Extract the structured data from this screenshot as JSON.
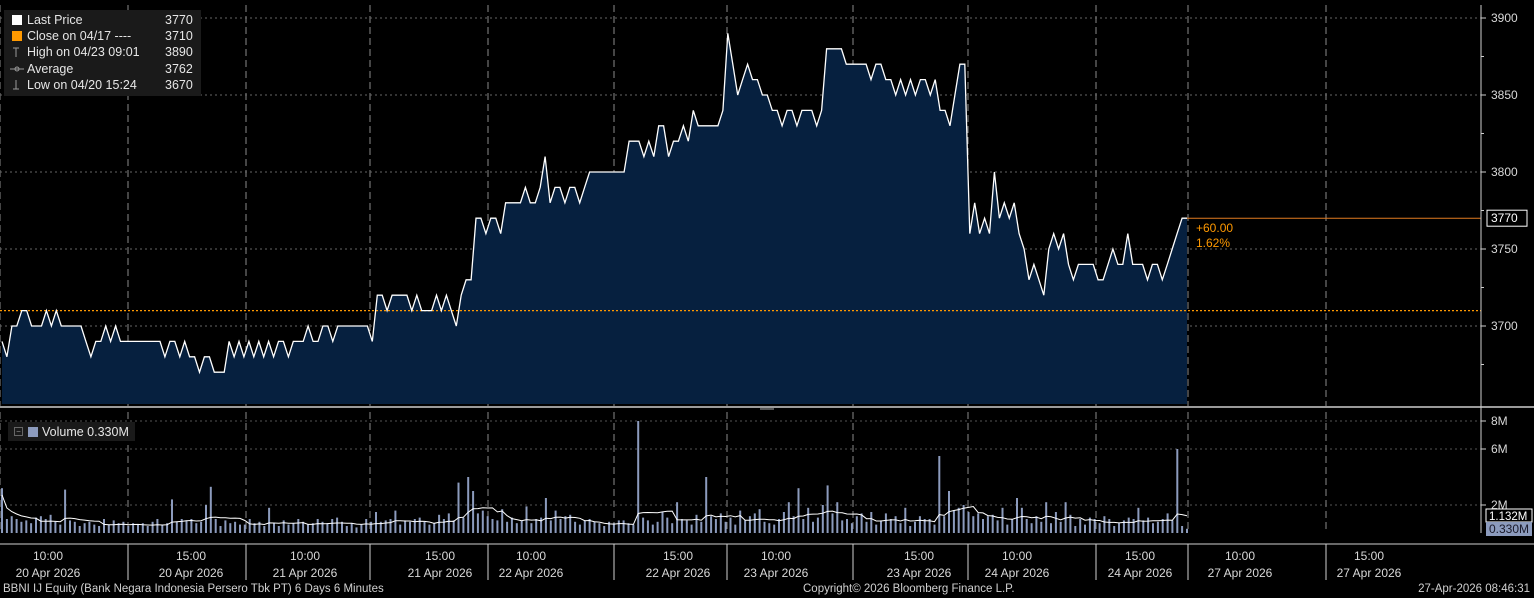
{
  "legend": {
    "last_price": {
      "label": "Last Price",
      "value": "3770",
      "color": "#ffffff"
    },
    "close": {
      "label": "Close on 04/17 ----",
      "value": "3710",
      "color": "#ff9900"
    },
    "high": {
      "label": "High on 04/23 09:01",
      "value": "3890"
    },
    "average": {
      "label": "Average",
      "value": "3762"
    },
    "low": {
      "label": "Low on 04/20 15:24",
      "value": "3670"
    }
  },
  "volume_legend": {
    "label": "Volume 0.330M",
    "color": "#8c9bbd"
  },
  "price_axis": {
    "ticks": [
      "3900",
      "3850",
      "3800",
      "3750",
      "3700"
    ],
    "last_label": "3770"
  },
  "volume_axis": {
    "ticks": [
      "8M",
      "6M",
      "2M"
    ],
    "avg_label": "1.132M",
    "last_label": "0.330M"
  },
  "change": {
    "abs": "+60.00",
    "pct": "1.62%"
  },
  "x_axis": [
    {
      "time": "10:00",
      "date": "20 Apr 2026"
    },
    {
      "time": "15:00",
      "date": "20 Apr 2026"
    },
    {
      "time": "10:00",
      "date": "21 Apr 2026"
    },
    {
      "time": "15:00",
      "date": "21 Apr 2026"
    },
    {
      "time": "10:00",
      "date": "22 Apr 2026"
    },
    {
      "time": "15:00",
      "date": "22 Apr 2026"
    },
    {
      "time": "10:00",
      "date": "23 Apr 2026"
    },
    {
      "time": "15:00",
      "date": "23 Apr 2026"
    },
    {
      "time": "10:00",
      "date": "24 Apr 2026"
    },
    {
      "time": "15:00",
      "date": "24 Apr 2026"
    },
    {
      "time": "10:00",
      "date": "27 Apr 2026"
    },
    {
      "time": "15:00",
      "date": "27 Apr 2026"
    }
  ],
  "footer": {
    "left": "BBNI IJ Equity (Bank Negara Indonesia Persero Tbk PT) 6 Days 6 Minutes",
    "center": "Copyright© 2026 Bloomberg Finance L.P.",
    "right": "27-Apr-2026 08:46:31"
  },
  "chart_data": {
    "type": "area",
    "price": {
      "values": [
        3690,
        3680,
        3700,
        3700,
        3710,
        3710,
        3700,
        3700,
        3700,
        3710,
        3700,
        3710,
        3700,
        3700,
        3700,
        3700,
        3700,
        3690,
        3680,
        3690,
        3690,
        3700,
        3690,
        3700,
        3690,
        3690,
        3690,
        3690,
        3690,
        3690,
        3690,
        3690,
        3690,
        3680,
        3690,
        3690,
        3680,
        3690,
        3680,
        3680,
        3670,
        3680,
        3680,
        3670,
        3670,
        3670,
        3690,
        3680,
        3690,
        3680,
        3690,
        3680,
        3690,
        3680,
        3690,
        3680,
        3690,
        3690,
        3680,
        3690,
        3690,
        3690,
        3700,
        3690,
        3690,
        3700,
        3700,
        3690,
        3700,
        3700,
        3700,
        3700,
        3700,
        3700,
        3700,
        3690,
        3720,
        3720,
        3710,
        3720,
        3720,
        3720,
        3720,
        3710,
        3720,
        3710,
        3710,
        3710,
        3720,
        3710,
        3720,
        3710,
        3700,
        3720,
        3730,
        3730,
        3770,
        3770,
        3760,
        3770,
        3770,
        3760,
        3780,
        3780,
        3780,
        3780,
        3790,
        3780,
        3780,
        3790,
        3810,
        3780,
        3790,
        3790,
        3780,
        3790,
        3790,
        3780,
        3790,
        3800,
        3800,
        3800,
        3800,
        3800,
        3800,
        3800,
        3800,
        3820,
        3820,
        3820,
        3810,
        3820,
        3810,
        3830,
        3830,
        3810,
        3820,
        3820,
        3830,
        3820,
        3840,
        3830,
        3830,
        3830,
        3830,
        3830,
        3840,
        3890,
        3870,
        3850,
        3860,
        3870,
        3860,
        3860,
        3850,
        3850,
        3840,
        3840,
        3830,
        3840,
        3840,
        3830,
        3840,
        3840,
        3840,
        3830,
        3840,
        3880,
        3880,
        3880,
        3880,
        3870,
        3870,
        3870,
        3870,
        3870,
        3860,
        3870,
        3870,
        3860,
        3860,
        3850,
        3860,
        3850,
        3860,
        3850,
        3860,
        3860,
        3850,
        3860,
        3840,
        3840,
        3830,
        3850,
        3870,
        3870,
        3760,
        3780,
        3760,
        3770,
        3760,
        3800,
        3770,
        3780,
        3770,
        3780,
        3760,
        3750,
        3730,
        3740,
        3730,
        3720,
        3750,
        3760,
        3750,
        3760,
        3740,
        3730,
        3740,
        3740,
        3740,
        3740,
        3730,
        3730,
        3740,
        3750,
        3740,
        3740,
        3760,
        3740,
        3740,
        3740,
        3730,
        3740,
        3740,
        3730,
        3740,
        3750,
        3760,
        3770,
        3770
      ],
      "close_prior": 3710,
      "ylim": [
        3650,
        3900
      ],
      "last": 3770,
      "high": 3890,
      "average": 3762,
      "low": 3670
    },
    "volume": {
      "values": [
        3.2,
        1.0,
        1.2,
        1.0,
        0.8,
        0.9,
        0.7,
        1.1,
        1.2,
        1.0,
        1.3,
        0.8,
        0.6,
        3.1,
        0.9,
        0.8,
        0.5,
        0.7,
        0.8,
        0.6,
        0.5,
        1.0,
        0.6,
        0.9,
        0.7,
        0.8,
        0.5,
        0.7,
        0.6,
        0.7,
        0.5,
        0.8,
        1.0,
        0.6,
        0.7,
        2.4,
        0.8,
        1.0,
        0.9,
        1.0,
        0.7,
        0.8,
        2.0,
        3.3,
        1.0,
        0.5,
        0.9,
        0.7,
        0.8,
        0.6,
        0.6,
        1.0,
        0.7,
        0.8,
        0.5,
        1.8,
        0.7,
        0.5,
        0.9,
        0.6,
        0.7,
        1.0,
        0.8,
        0.6,
        0.7,
        1.0,
        0.8,
        0.7,
        1.0,
        1.1,
        0.8,
        0.5,
        0.7,
        0.4,
        0.6,
        1.0,
        0.8,
        1.5,
        0.8,
        0.9,
        1.0,
        1.6,
        0.6,
        0.9,
        0.8,
        1.0,
        1.1,
        0.8,
        0.6,
        0.7,
        1.3,
        1.0,
        1.4,
        0.9,
        3.6,
        1.1,
        4.0,
        3.0,
        1.4,
        1.6,
        1.2,
        1.0,
        0.9,
        1.7,
        0.8,
        1.1,
        0.7,
        0.9,
        1.9,
        0.7,
        1.0,
        1.1,
        2.5,
        0.9,
        1.6,
        1.0,
        1.2,
        1.3,
        0.8,
        0.6,
        0.9,
        1.0,
        0.8,
        0.7,
        0.5,
        0.8,
        0.7,
        0.9,
        0.9,
        0.7,
        0.6,
        8.0,
        1.1,
        0.9,
        0.6,
        0.8,
        1.5,
        1.1,
        0.7,
        2.2,
        1.0,
        0.9,
        0.6,
        1.3,
        0.8,
        4.0,
        1.2,
        1.0,
        1.4,
        0.8,
        1.1,
        0.6,
        1.6,
        0.9,
        1.2,
        1.4,
        1.7,
        0.8,
        0.7,
        0.6,
        1.0,
        1.5,
        2.2,
        1.2,
        3.2,
        1.0,
        1.8,
        0.8,
        1.1,
        2.0,
        3.4,
        1.4,
        2.2,
        0.9,
        1.0,
        0.7,
        1.2,
        1.4,
        0.8,
        1.5,
        0.6,
        0.9,
        1.4,
        1.0,
        1.2,
        0.7,
        1.8,
        0.5,
        0.8,
        1.2,
        1.0,
        1.0,
        0.6,
        5.5,
        1.2,
        3.0,
        1.6,
        1.8,
        2.0,
        1.5,
        1.2,
        1.4,
        1.0,
        1.2,
        1.3,
        0.9,
        1.8,
        0.6,
        1.0,
        2.5,
        1.8,
        1.0,
        0.7,
        1.2,
        0.8,
        2.2,
        0.7,
        1.5,
        0.8,
        2.2,
        1.3,
        0.5,
        1.0,
        0.6,
        1.1,
        1.0,
        0.7,
        1.2,
        1.0,
        0.5,
        0.7,
        0.9,
        1.1,
        1.0,
        1.8,
        0.9,
        1.1,
        0.7,
        0.8,
        1.0,
        1.4,
        0.9,
        6.0,
        0.5,
        0.3
      ],
      "unit": "M",
      "ylim": [
        0,
        8.6
      ],
      "last": 0.33,
      "average": 1.132
    }
  }
}
